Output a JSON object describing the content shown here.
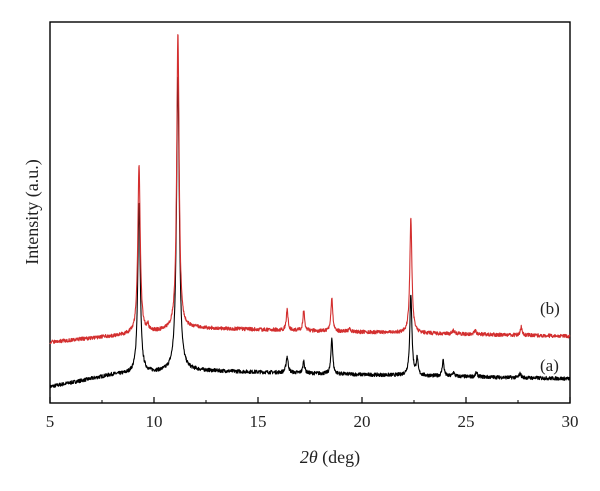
{
  "chart_data": {
    "type": "line",
    "xlabel_var": "2θ",
    "xlabel_unit": " (deg)",
    "ylabel": "Intensity (a.u.)",
    "xlim": [
      5,
      30
    ],
    "xticks": [
      "5",
      "10",
      "15",
      "20",
      "25",
      "30"
    ],
    "yticks_shown": false,
    "grid": false,
    "series": [
      {
        "name": "(a)",
        "color": "#000000",
        "baseline": [
          [
            5.0,
            0.0
          ],
          [
            8.0,
            0.06
          ],
          [
            12.0,
            0.08
          ],
          [
            20.0,
            0.06
          ],
          [
            25.0,
            0.05
          ],
          [
            30.0,
            0.04
          ]
        ],
        "peaks": [
          {
            "x": 9.28,
            "height": 0.84,
            "width": 0.07
          },
          {
            "x": 11.15,
            "height": 1.46,
            "width": 0.08
          },
          {
            "x": 16.4,
            "height": 0.08,
            "width": 0.06
          },
          {
            "x": 17.2,
            "height": 0.06,
            "width": 0.05
          },
          {
            "x": 18.55,
            "height": 0.18,
            "width": 0.05
          },
          {
            "x": 22.35,
            "height": 0.4,
            "width": 0.06
          },
          {
            "x": 22.65,
            "height": 0.08,
            "width": 0.05
          },
          {
            "x": 23.9,
            "height": 0.08,
            "width": 0.05
          },
          {
            "x": 24.4,
            "height": 0.02,
            "width": 0.05
          },
          {
            "x": 25.5,
            "height": 0.02,
            "width": 0.06
          },
          {
            "x": 27.6,
            "height": 0.02,
            "width": 0.06
          }
        ]
      },
      {
        "name": "(b)",
        "color": "#d32f2f",
        "baseline": [
          [
            5.0,
            0.22
          ],
          [
            8.0,
            0.25
          ],
          [
            12.0,
            0.29
          ],
          [
            20.0,
            0.27
          ],
          [
            25.0,
            0.26
          ],
          [
            30.0,
            0.25
          ]
        ],
        "peaks": [
          {
            "x": 9.28,
            "height": 0.83,
            "width": 0.07
          },
          {
            "x": 9.7,
            "height": 0.03,
            "width": 0.05
          },
          {
            "x": 11.15,
            "height": 1.46,
            "width": 0.07
          },
          {
            "x": 16.4,
            "height": 0.1,
            "width": 0.05
          },
          {
            "x": 17.2,
            "height": 0.1,
            "width": 0.05
          },
          {
            "x": 18.55,
            "height": 0.17,
            "width": 0.05
          },
          {
            "x": 19.4,
            "height": 0.02,
            "width": 0.05
          },
          {
            "x": 22.35,
            "height": 0.57,
            "width": 0.06
          },
          {
            "x": 24.4,
            "height": 0.02,
            "width": 0.05
          },
          {
            "x": 25.45,
            "height": 0.02,
            "width": 0.05
          },
          {
            "x": 27.65,
            "height": 0.04,
            "width": 0.05
          }
        ]
      }
    ],
    "annotations": [
      "(b)",
      "(a)"
    ]
  }
}
